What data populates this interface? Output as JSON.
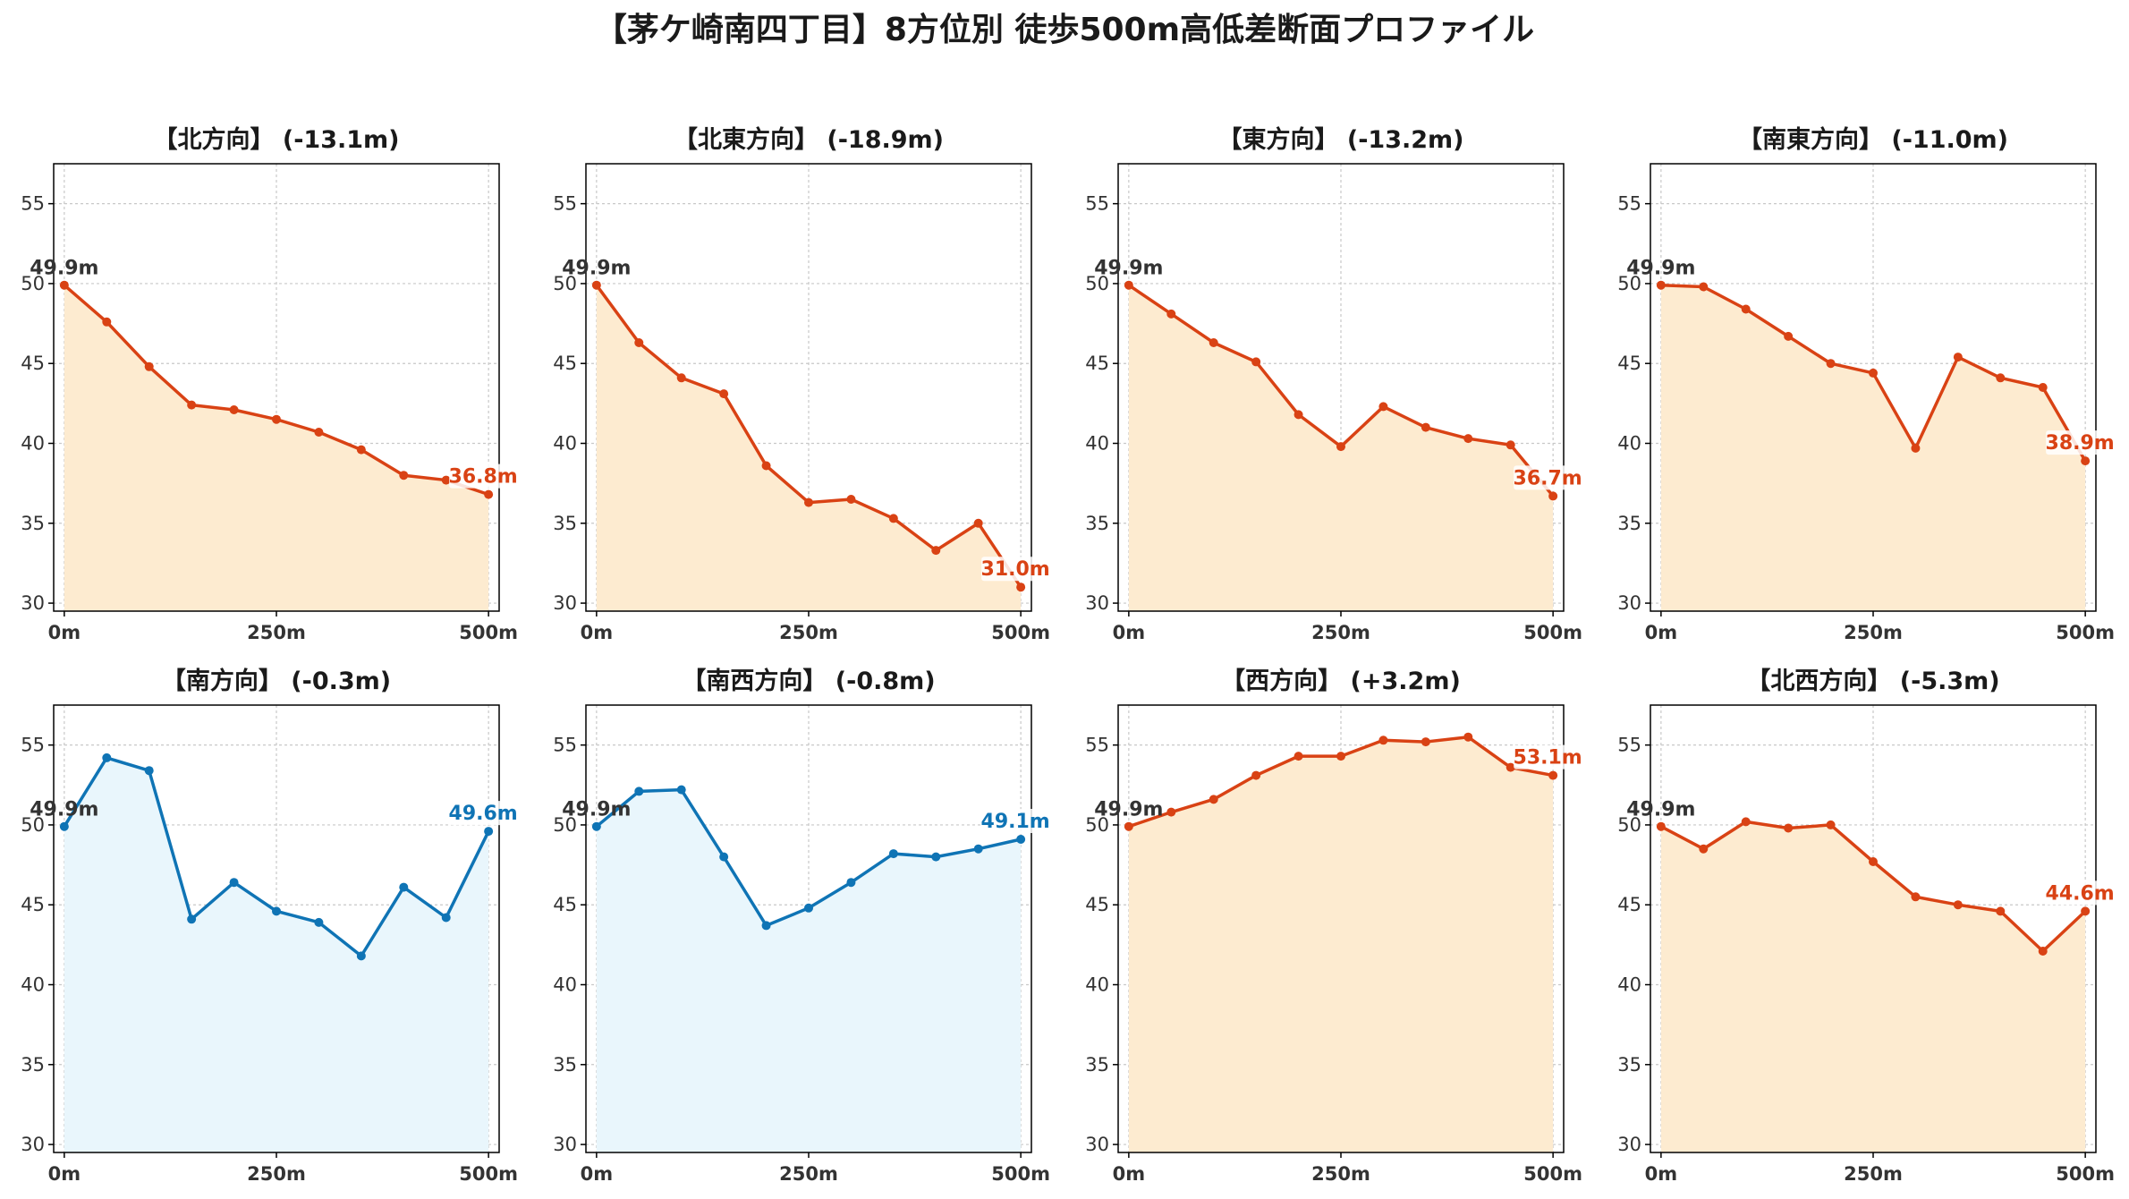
{
  "title": "【茅ケ崎南四丁目】8方位別 徒歩500m高低差断面プロファイル",
  "chart_data": [
    {
      "type": "area",
      "title": "【北方向】 (-13.1m)",
      "x": [
        0,
        50,
        100,
        150,
        200,
        250,
        300,
        350,
        400,
        450,
        500
      ],
      "values": [
        49.9,
        47.6,
        44.8,
        42.4,
        42.1,
        41.5,
        40.7,
        39.6,
        38.0,
        37.7,
        36.8
      ],
      "start_label": "49.9m",
      "end_label": "36.8m",
      "trend": "down",
      "xticks": [
        "0m",
        "250m",
        "500m"
      ],
      "ylim": [
        29.5,
        57.5
      ],
      "yticks": [
        "30",
        "35",
        "40",
        "45",
        "50",
        "55"
      ],
      "grid": true
    },
    {
      "type": "area",
      "title": "【北東方向】 (-18.9m)",
      "x": [
        0,
        50,
        100,
        150,
        200,
        250,
        300,
        350,
        400,
        450,
        500
      ],
      "values": [
        49.9,
        46.3,
        44.1,
        43.1,
        38.6,
        36.3,
        36.5,
        35.3,
        33.3,
        35.0,
        31.0
      ],
      "start_label": "49.9m",
      "end_label": "31.0m",
      "trend": "down",
      "xticks": [
        "0m",
        "250m",
        "500m"
      ],
      "ylim": [
        29.5,
        57.5
      ],
      "yticks": [
        "30",
        "35",
        "40",
        "45",
        "50",
        "55"
      ],
      "grid": true
    },
    {
      "type": "area",
      "title": "【東方向】 (-13.2m)",
      "x": [
        0,
        50,
        100,
        150,
        200,
        250,
        300,
        350,
        400,
        450,
        500
      ],
      "values": [
        49.9,
        48.1,
        46.3,
        45.1,
        41.8,
        39.8,
        42.3,
        41.0,
        40.3,
        39.9,
        36.7
      ],
      "start_label": "49.9m",
      "end_label": "36.7m",
      "trend": "down",
      "xticks": [
        "0m",
        "250m",
        "500m"
      ],
      "ylim": [
        29.5,
        57.5
      ],
      "yticks": [
        "30",
        "35",
        "40",
        "45",
        "50",
        "55"
      ],
      "grid": true
    },
    {
      "type": "area",
      "title": "【南東方向】 (-11.0m)",
      "x": [
        0,
        50,
        100,
        150,
        200,
        250,
        300,
        350,
        400,
        450,
        500
      ],
      "values": [
        49.9,
        49.8,
        48.4,
        46.7,
        45.0,
        44.4,
        39.7,
        45.4,
        44.1,
        43.5,
        38.9
      ],
      "start_label": "49.9m",
      "end_label": "38.9m",
      "trend": "down",
      "xticks": [
        "0m",
        "250m",
        "500m"
      ],
      "ylim": [
        29.5,
        57.5
      ],
      "yticks": [
        "30",
        "35",
        "40",
        "45",
        "50",
        "55"
      ],
      "grid": true
    },
    {
      "type": "area",
      "title": "【南方向】 (-0.3m)",
      "x": [
        0,
        50,
        100,
        150,
        200,
        250,
        300,
        350,
        400,
        450,
        500
      ],
      "values": [
        49.9,
        54.2,
        53.4,
        44.1,
        46.4,
        44.6,
        43.9,
        41.8,
        46.1,
        44.2,
        49.6
      ],
      "start_label": "49.9m",
      "end_label": "49.6m",
      "trend": "flat",
      "xticks": [
        "0m",
        "250m",
        "500m"
      ],
      "ylim": [
        29.5,
        57.5
      ],
      "yticks": [
        "30",
        "35",
        "40",
        "45",
        "50",
        "55"
      ],
      "grid": true
    },
    {
      "type": "area",
      "title": "【南西方向】 (-0.8m)",
      "x": [
        0,
        50,
        100,
        150,
        200,
        250,
        300,
        350,
        400,
        450,
        500
      ],
      "values": [
        49.9,
        52.1,
        52.2,
        48.0,
        43.7,
        44.8,
        46.4,
        48.2,
        48.0,
        48.5,
        49.1
      ],
      "start_label": "49.9m",
      "end_label": "49.1m",
      "trend": "flat",
      "xticks": [
        "0m",
        "250m",
        "500m"
      ],
      "ylim": [
        29.5,
        57.5
      ],
      "yticks": [
        "30",
        "35",
        "40",
        "45",
        "50",
        "55"
      ],
      "grid": true
    },
    {
      "type": "area",
      "title": "【西方向】 (+3.2m)",
      "x": [
        0,
        50,
        100,
        150,
        200,
        250,
        300,
        350,
        400,
        450,
        500
      ],
      "values": [
        49.9,
        50.8,
        51.6,
        53.1,
        54.3,
        54.3,
        55.3,
        55.2,
        55.5,
        53.6,
        53.1
      ],
      "start_label": "49.9m",
      "end_label": "53.1m",
      "trend": "up",
      "xticks": [
        "0m",
        "250m",
        "500m"
      ],
      "ylim": [
        29.5,
        57.5
      ],
      "yticks": [
        "30",
        "35",
        "40",
        "45",
        "50",
        "55"
      ],
      "grid": true
    },
    {
      "type": "area",
      "title": "【北西方向】 (-5.3m)",
      "x": [
        0,
        50,
        100,
        150,
        200,
        250,
        300,
        350,
        400,
        450,
        500
      ],
      "values": [
        49.9,
        48.5,
        50.2,
        49.8,
        50.0,
        47.7,
        45.5,
        45.0,
        44.6,
        42.1,
        44.6
      ],
      "start_label": "49.9m",
      "end_label": "44.6m",
      "trend": "down",
      "xticks": [
        "0m",
        "250m",
        "500m"
      ],
      "ylim": [
        29.5,
        57.5
      ],
      "yticks": [
        "30",
        "35",
        "40",
        "45",
        "50",
        "55"
      ],
      "grid": true
    }
  ],
  "colors": {
    "strong_line": "#d94214",
    "strong_fill": "#fdebd0",
    "flat_line": "#0f74b5",
    "flat_fill": "#e9f6fc",
    "axis": "#000000",
    "grid": "#c8c8c8",
    "start_label": "#333333"
  }
}
